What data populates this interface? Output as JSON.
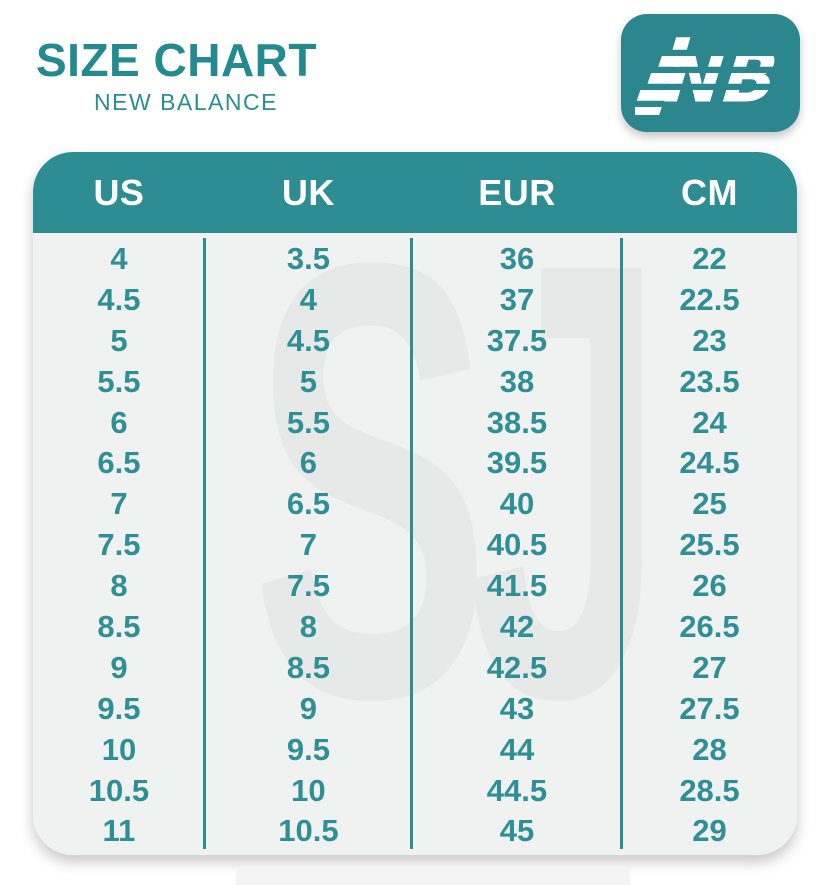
{
  "header": {
    "title": "SIZE CHART",
    "subtitle": "NEW BALANCE"
  },
  "logo": {
    "monogram": "NB",
    "description": "new-balance-flying-nb-logo"
  },
  "watermark_text": "SJ",
  "colors": {
    "accent_teal": "#2E8D92",
    "logo_teal": "#2B868D",
    "number_teal": "#2E9094",
    "title_teal": "#238A8F",
    "table_bg": "#F0F1F1",
    "header_text": "#FFFFFF",
    "watermark_gray": "#E7E8E8",
    "page_bg": "#FFFFFF"
  },
  "chart_data": {
    "type": "table",
    "title": "SIZE CHART",
    "subtitle": "NEW BALANCE",
    "columns": [
      "US",
      "UK",
      "EUR",
      "CM"
    ],
    "rows": [
      [
        "4",
        "3.5",
        "36",
        "22"
      ],
      [
        "4.5",
        "4",
        "37",
        "22.5"
      ],
      [
        "5",
        "4.5",
        "37.5",
        "23"
      ],
      [
        "5.5",
        "5",
        "38",
        "23.5"
      ],
      [
        "6",
        "5.5",
        "38.5",
        "24"
      ],
      [
        "6.5",
        "6",
        "39.5",
        "24.5"
      ],
      [
        "7",
        "6.5",
        "40",
        "25"
      ],
      [
        "7.5",
        "7",
        "40.5",
        "25.5"
      ],
      [
        "8",
        "7.5",
        "41.5",
        "26"
      ],
      [
        "8.5",
        "8",
        "42",
        "26.5"
      ],
      [
        "9",
        "8.5",
        "42.5",
        "27"
      ],
      [
        "9.5",
        "9",
        "43",
        "27.5"
      ],
      [
        "10",
        "9.5",
        "44",
        "28"
      ],
      [
        "10.5",
        "10",
        "44.5",
        "28.5"
      ],
      [
        "11",
        "10.5",
        "45",
        "29"
      ]
    ]
  }
}
